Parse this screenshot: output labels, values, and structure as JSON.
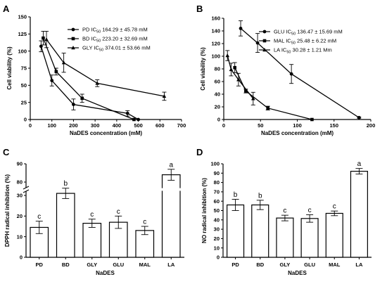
{
  "figure": {
    "panels": [
      "A",
      "B",
      "C",
      "D"
    ]
  },
  "chart_data": [
    {
      "panel": "A",
      "type": "line",
      "xlabel": "NaDES concentration (mM)",
      "ylabel": "Cell viability (%)",
      "xlim": [
        0,
        700
      ],
      "ylim": [
        0,
        150
      ],
      "xticks": [
        0,
        100,
        200,
        300,
        400,
        500,
        600,
        700
      ],
      "yticks": [
        0,
        25,
        50,
        75,
        100,
        125,
        150
      ],
      "legend_position": "top-right",
      "series": [
        {
          "name": "PD IC50 164.29 ± 45.78 mM",
          "label_prefix": "PD IC",
          "label_sub": "50",
          "label_suffix": " 164.29 ± 45.78 mM",
          "marker": "circle",
          "x": [
            50,
            100,
            200,
            450,
            500
          ],
          "y": [
            107,
            57,
            22,
            9,
            0
          ],
          "err": [
            8,
            8,
            8,
            4,
            0
          ]
        },
        {
          "name": "BD IC50 223.20 ± 32.69 mM",
          "label_prefix": "BD IC",
          "label_sub": "50",
          "label_suffix": " 223.20 ± 32.69 mM",
          "marker": "square",
          "x": [
            60,
            120,
            240,
            480
          ],
          "y": [
            119,
            70,
            31,
            0
          ],
          "err": [
            10,
            5,
            6,
            0
          ]
        },
        {
          "name": "GLY IC50 374.01 ± 53.66 mM",
          "label_prefix": "GLY IC",
          "label_sub": "50",
          "label_suffix": " 374.01 ± 53.66 mM",
          "marker": "triangle",
          "x": [
            75,
            155,
            310,
            620
          ],
          "y": [
            117,
            83,
            53,
            34
          ],
          "err": [
            12,
            14,
            5,
            6
          ]
        }
      ]
    },
    {
      "panel": "B",
      "type": "line",
      "xlabel": "NaDES concentration (mM)",
      "ylabel": "Cell viability (%)",
      "xlim": [
        0,
        200
      ],
      "ylim": [
        0,
        160
      ],
      "xticks": [
        0,
        50,
        100,
        150,
        200
      ],
      "yticks": [
        0,
        20,
        40,
        60,
        80,
        100,
        120,
        140,
        160
      ],
      "legend_position": "top-right",
      "series": [
        {
          "name": "GLU IC50 136.47 ± 15.69 mM",
          "label_prefix": "GLU IC",
          "label_sub": "50",
          "label_suffix": " 136.47 ± 15.69 mM",
          "marker": "circle",
          "x": [
            23,
            46,
            92,
            184
          ],
          "y": [
            144,
            121,
            72,
            3
          ],
          "err": [
            12,
            15,
            15,
            1
          ]
        },
        {
          "name": "MAL IC50 25.48 ± 6.22 mM",
          "label_prefix": "MAL IC",
          "label_sub": "50",
          "label_suffix": " 25.48 ± 6.22 mM",
          "marker": "square",
          "x": [
            15,
            30,
            60,
            120
          ],
          "y": [
            82,
            45,
            18,
            0
          ],
          "err": [
            8,
            3,
            3,
            0
          ]
        },
        {
          "name": "LA IC50 30.28 ± 1.21 Mm",
          "label_prefix": "LA IC",
          "label_sub": "50",
          "label_suffix": " 30.28 ± 1.21 Mm",
          "marker": "triangle",
          "x": [
            5,
            10,
            20,
            40
          ],
          "y": [
            101,
            79,
            63,
            33
          ],
          "err": [
            8,
            10,
            10,
            10
          ]
        }
      ]
    },
    {
      "panel": "C",
      "type": "bar",
      "xlabel": "NaDES",
      "ylabel": "DPPH radical inhibition (%)",
      "categories": [
        "PD",
        "BD",
        "GLY",
        "GLU",
        "MAL",
        "LA"
      ],
      "values": [
        14.5,
        31,
        16.5,
        17,
        13,
        84
      ],
      "err": [
        3,
        2.5,
        2,
        3,
        2,
        3
      ],
      "sig_letters": [
        "c",
        "b",
        "c",
        "c",
        "c",
        "a"
      ],
      "yticks": [
        0,
        10,
        20,
        30,
        80,
        90
      ],
      "axis_break": [
        35,
        75
      ],
      "ylim": [
        0,
        90
      ]
    },
    {
      "panel": "D",
      "type": "bar",
      "xlabel": "NaDES",
      "ylabel": "NO radical inhibition (%)",
      "categories": [
        "PD",
        "BD",
        "GLY",
        "GLU",
        "MAL",
        "LA"
      ],
      "values": [
        56,
        56,
        42,
        41.5,
        47,
        92
      ],
      "err": [
        6,
        5,
        3,
        4,
        2.5,
        3
      ],
      "sig_letters": [
        "b",
        "b",
        "c",
        "c",
        "c",
        "a"
      ],
      "yticks": [
        0,
        10,
        20,
        30,
        40,
        50,
        60,
        70,
        80,
        90,
        100
      ],
      "ylim": [
        0,
        100
      ]
    }
  ]
}
